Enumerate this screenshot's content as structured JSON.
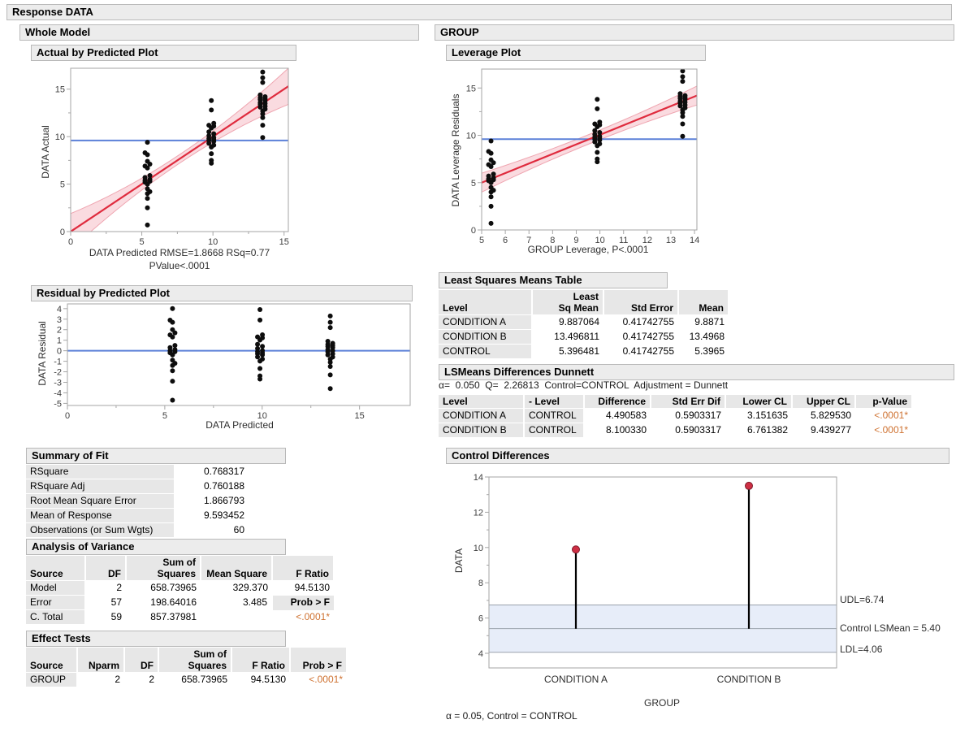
{
  "page": {
    "title": "Response DATA"
  },
  "outlines": {
    "whole_model": "Whole Model",
    "group": "GROUP",
    "actual_by_predicted": "Actual by Predicted Plot",
    "leverage": "Leverage Plot",
    "residual": "Residual by Predicted Plot",
    "summary_of_fit": "Summary of Fit",
    "anova": "Analysis of Variance",
    "effect_tests": "Effect Tests",
    "lsmeans": "Least Squares Means Table",
    "dunnett": "LSMeans Differences Dunnett",
    "control_differences": "Control Differences"
  },
  "axis_labels": {
    "abp_y": "DATA Actual",
    "abp_x1": "DATA Predicted RMSE=1.8668 RSq=0.77",
    "abp_x2": "PValue<.0001",
    "lev_y": "DATA Leverage Residuals",
    "lev_x": "GROUP Leverage, P<.0001",
    "res_y": "DATA Residual",
    "res_x": "DATA Predicted",
    "cd_y": "DATA",
    "cd_x": "GROUP"
  },
  "summary_of_fit": {
    "rows": [
      {
        "label": "RSquare",
        "value": "0.768317"
      },
      {
        "label": "RSquare Adj",
        "value": "0.760188"
      },
      {
        "label": "Root Mean Square Error",
        "value": "1.866793"
      },
      {
        "label": "Mean of Response",
        "value": "9.593452"
      },
      {
        "label": "Observations (or Sum Wgts)",
        "value": "60"
      }
    ]
  },
  "anova": {
    "headers": {
      "source": "Source",
      "df": "DF",
      "ss": "Sum of\nSquares",
      "ms": "Mean Square",
      "f": "F Ratio"
    },
    "rows": [
      {
        "source": "Model",
        "df": "2",
        "ss": "658.73965",
        "ms": "329.370",
        "f": "94.5130"
      },
      {
        "source": "Error",
        "df": "57",
        "ss": "198.64016",
        "ms": "3.485",
        "f": "Prob > F"
      },
      {
        "source": "C. Total",
        "df": "59",
        "ss": "857.37981",
        "ms": "",
        "f": "<.0001*"
      }
    ]
  },
  "effect_tests": {
    "headers": {
      "source": "Source",
      "nparm": "Nparm",
      "df": "DF",
      "ss": "Sum of\nSquares",
      "f": "F Ratio",
      "p": "Prob > F"
    },
    "rows": [
      {
        "source": "GROUP",
        "nparm": "2",
        "df": "2",
        "ss": "658.73965",
        "f": "94.5130",
        "p": "<.0001*"
      }
    ]
  },
  "lsmeans": {
    "headers": {
      "level": "Level",
      "lsmean": "Least\nSq Mean",
      "stderr": "Std Error",
      "mean": "Mean"
    },
    "rows": [
      {
        "level": "CONDITION A",
        "lsmean": "9.887064",
        "stderr": "0.41742755",
        "mean": "9.8871"
      },
      {
        "level": "CONDITION B",
        "lsmean": "13.496811",
        "stderr": "0.41742755",
        "mean": "13.4968"
      },
      {
        "level": "CONTROL",
        "lsmean": "5.396481",
        "stderr": "0.41742755",
        "mean": "5.3965"
      }
    ]
  },
  "dunnett": {
    "note": "α=  0.050  Q=  2.26813  Control=CONTROL  Adjustment = Dunnett",
    "headers": {
      "level": "Level",
      "minus": "- Level",
      "diff": "Difference",
      "se": "Std Err Dif",
      "lcl": "Lower CL",
      "ucl": "Upper CL",
      "p": "p-Value"
    },
    "rows": [
      {
        "level": "CONDITION A",
        "minus": "CONTROL",
        "diff": "4.490583",
        "se": "0.5903317",
        "lcl": "3.151635",
        "ucl": "5.829530",
        "p": "<.0001*"
      },
      {
        "level": "CONDITION B",
        "minus": "CONTROL",
        "diff": "8.100330",
        "se": "0.5903317",
        "lcl": "6.761382",
        "ucl": "9.439277",
        "p": "<.0001*"
      }
    ]
  },
  "control_differences": {
    "udl_label": "UDL=6.74",
    "lsmean_label": "Control LSMean = 5.40",
    "ldl_label": "LDL=4.06",
    "footnote": "α = 0.05, Control = CONTROL",
    "categories": [
      "CONDITION A",
      "CONDITION B"
    ]
  },
  "colors": {
    "fit_line": "#df2b3e",
    "band_fill": "#fadbe0",
    "band_edge": "#efa6b1",
    "mean_line": "#5c81d8",
    "point": "#0d0d0d",
    "frame": "#a6a6a6",
    "needle": "#000000",
    "needle_dot": "#ce2f44",
    "needle_dot_edge": "#7e1c2b",
    "blue_band": "#e7edf9",
    "ref_line": "#9aa2ac",
    "pvalue_orange": "#cf7231"
  },
  "chart_data": [
    {
      "id": "actual_by_predicted",
      "type": "scatter",
      "title": "Actual by Predicted Plot",
      "xlabel": "DATA Predicted RMSE=1.8668 RSq=0.77 PValue<.0001",
      "ylabel": "DATA Actual",
      "xlim": [
        0,
        15.3
      ],
      "ylim": [
        0,
        17.2
      ],
      "xticks": [
        0,
        5,
        10,
        15
      ],
      "yticks": [
        0,
        5,
        10,
        15
      ],
      "xminor": [
        2.5,
        7.5,
        12.5
      ],
      "yminor": [
        2.5,
        7.5,
        12.5
      ],
      "fit_line": {
        "x": [
          0,
          15.3
        ],
        "y": [
          0,
          15.3
        ]
      },
      "band": {
        "mid": 0.45,
        "end": 1.9
      },
      "mean_line": 9.593452,
      "groups": [
        {
          "name": "CONTROL",
          "x": 5.396481,
          "values": [
            0.7,
            2.5,
            3.5,
            4.0,
            4.2,
            4.5,
            5.0,
            5.2,
            5.3,
            5.4,
            5.5,
            5.7,
            5.9,
            6.7,
            6.9,
            7.1,
            7.4,
            8.1,
            8.3,
            9.4
          ]
        },
        {
          "name": "CONDITION A",
          "x": 9.887064,
          "values": [
            7.2,
            7.5,
            8.2,
            8.9,
            9.1,
            9.3,
            9.5,
            9.6,
            9.7,
            9.8,
            9.9,
            10.1,
            10.3,
            10.5,
            10.9,
            11.1,
            11.2,
            11.4,
            12.8,
            13.8
          ]
        },
        {
          "name": "CONDITION B",
          "x": 13.496811,
          "values": [
            9.9,
            11.2,
            12.0,
            12.4,
            12.7,
            12.9,
            13.1,
            13.2,
            13.4,
            13.5,
            13.6,
            13.8,
            13.9,
            14.0,
            14.1,
            14.2,
            14.4,
            15.7,
            16.2,
            16.8
          ]
        }
      ]
    },
    {
      "id": "leverage",
      "type": "scatter",
      "title": "Leverage Plot",
      "xlabel": "GROUP Leverage, P<.0001",
      "ylabel": "DATA Leverage Residuals",
      "xlim": [
        5,
        14.1
      ],
      "ylim": [
        0,
        17.0
      ],
      "xticks": [
        5,
        6,
        7,
        8,
        9,
        10,
        11,
        12,
        13,
        14
      ],
      "yticks": [
        0,
        5,
        10,
        15
      ],
      "yminor": [
        2.5,
        7.5,
        12.5
      ],
      "fit_line": {
        "x": [
          5,
          14.1
        ],
        "y": [
          5.0,
          14.2
        ]
      },
      "band": {
        "mid": 0.5,
        "end": 1.0
      },
      "mean_line": 9.593452,
      "groups_from": "actual_by_predicted"
    },
    {
      "id": "residual",
      "type": "scatter",
      "title": "Residual by Predicted Plot",
      "xlabel": "DATA Predicted",
      "ylabel": "DATA Residual",
      "xlim": [
        0,
        17.6
      ],
      "ylim": [
        -5.2,
        4.45
      ],
      "xticks": [
        0,
        5,
        10,
        15
      ],
      "yticks": [
        4,
        3,
        2,
        1,
        0,
        -1,
        -2,
        -3,
        -4,
        -5
      ],
      "xminor": [
        2.5,
        7.5,
        12.5
      ],
      "zero_line": 0,
      "residuals": true,
      "groups_from": "actual_by_predicted"
    },
    {
      "id": "control_differences",
      "type": "needle",
      "title": "Control Differences",
      "ylabel": "DATA",
      "xlabel": "GROUP",
      "ylim": [
        3.17,
        14.0
      ],
      "yticks": [
        14,
        12,
        10,
        8,
        6,
        4
      ],
      "yminor": [
        13,
        11,
        9,
        7,
        5
      ],
      "base": 5.396481,
      "udl": 6.74,
      "ldl": 4.06,
      "control_lsmean": 5.4,
      "points": [
        {
          "category": "CONDITION A",
          "value": 9.887064
        },
        {
          "category": "CONDITION B",
          "value": 13.496811
        }
      ]
    }
  ]
}
